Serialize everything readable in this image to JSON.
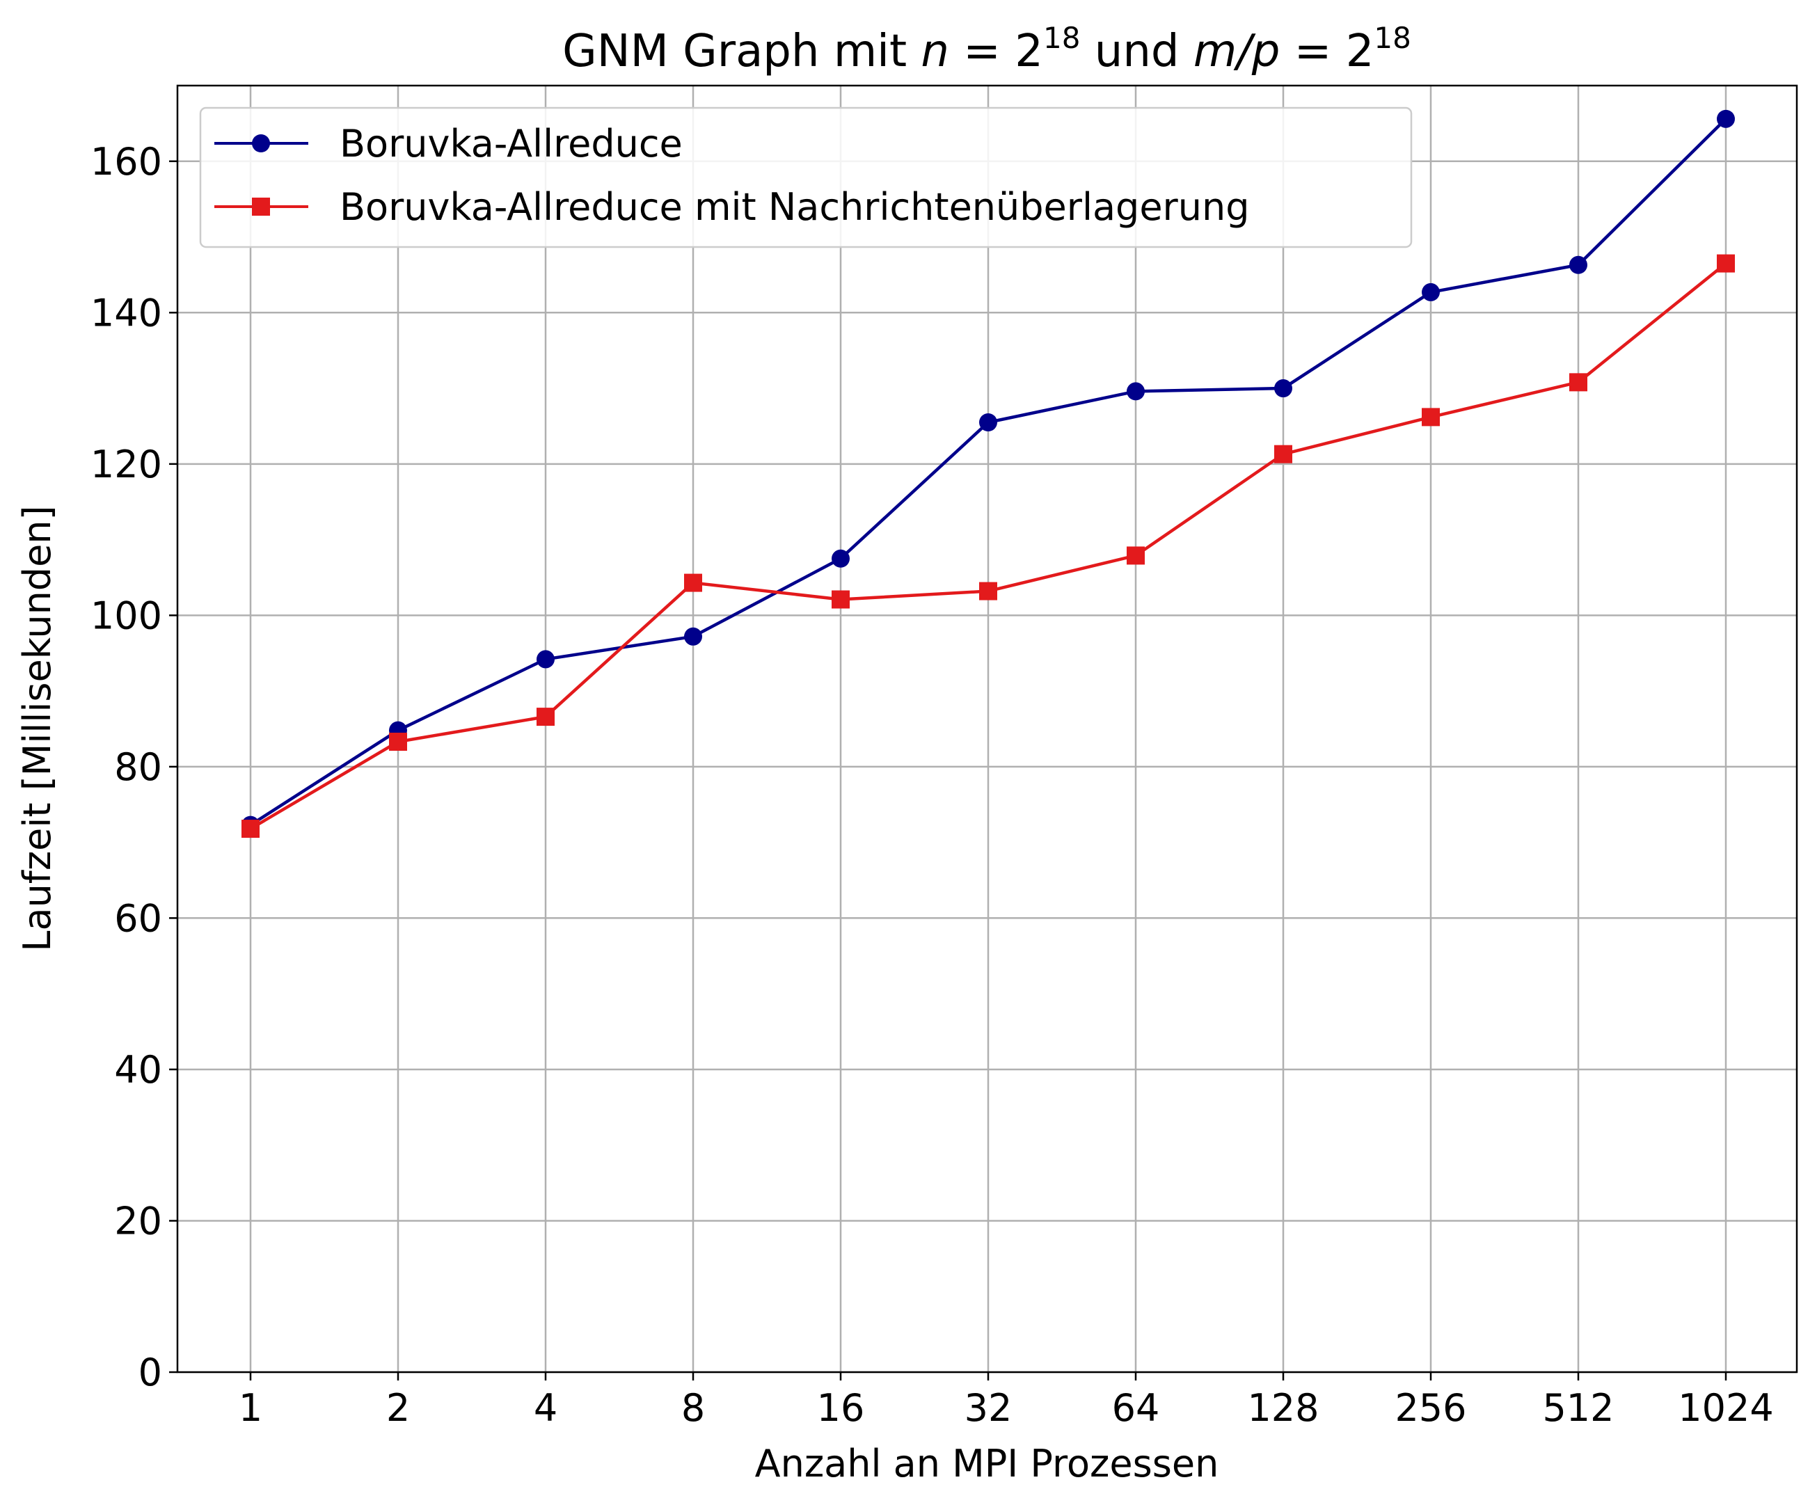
{
  "chart_data": {
    "type": "line",
    "title": {
      "prefix": "GNM Graph mit ",
      "n_var": "n",
      "n_eq": " = 2",
      "n_exp": "18",
      "middle": " und  ",
      "mp_var": "m/p",
      "mp_eq": " = 2",
      "mp_exp": "18"
    },
    "xlabel": "Anzahl an MPI Prozessen",
    "ylabel": "Laufzeit [Millisekunden]",
    "categories": [
      "1",
      "2",
      "4",
      "8",
      "16",
      "32",
      "64",
      "128",
      "256",
      "512",
      "1024"
    ],
    "ylim": [
      0,
      170
    ],
    "yticks": [
      "0",
      "20",
      "40",
      "60",
      "80",
      "100",
      "120",
      "140",
      "160"
    ],
    "grid": true,
    "legend_position": "top-left",
    "series": [
      {
        "name": "Boruvka-Allreduce",
        "color": "#00008b",
        "marker": "circle",
        "values": [
          72.3,
          84.8,
          94.2,
          97.2,
          107.5,
          125.5,
          129.6,
          130.0,
          142.7,
          146.3,
          165.6
        ]
      },
      {
        "name": "Boruvka-Allreduce mit Nachrichtenüberlagerung",
        "color": "#e31a1c",
        "marker": "square",
        "values": [
          71.8,
          83.3,
          86.6,
          104.3,
          102.1,
          103.2,
          107.9,
          121.3,
          126.2,
          130.8,
          146.5
        ]
      }
    ]
  }
}
